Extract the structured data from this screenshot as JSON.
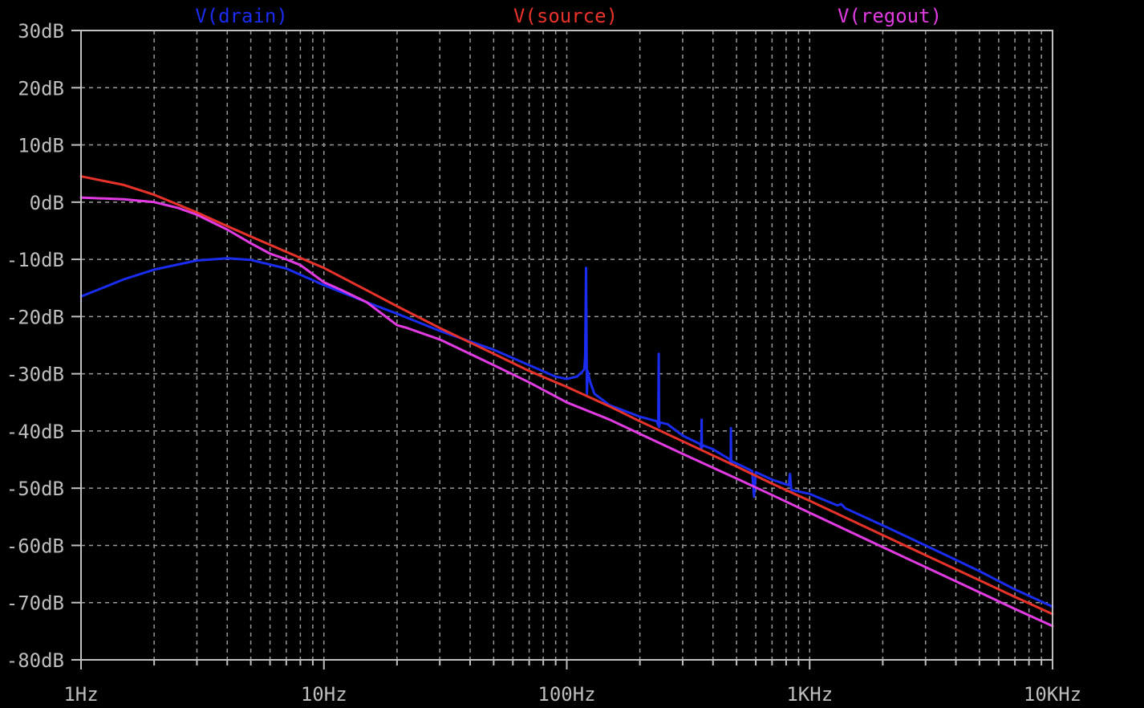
{
  "chart_data": {
    "type": "line",
    "title": "",
    "xlabel": "",
    "ylabel": "",
    "x_scale": "log",
    "x_range_hz": [
      1,
      10000
    ],
    "y_range_db": [
      -80,
      30
    ],
    "grid": true,
    "x_ticks": [
      {
        "value": 1,
        "label": "1Hz"
      },
      {
        "value": 10,
        "label": "10Hz"
      },
      {
        "value": 100,
        "label": "100Hz"
      },
      {
        "value": 1000,
        "label": "1KHz"
      },
      {
        "value": 10000,
        "label": "10KHz"
      }
    ],
    "y_ticks": [
      {
        "value": 30,
        "label": "30dB"
      },
      {
        "value": 20,
        "label": "20dB"
      },
      {
        "value": 10,
        "label": "10dB"
      },
      {
        "value": 0,
        "label": "0dB"
      },
      {
        "value": -10,
        "label": "-10dB"
      },
      {
        "value": -20,
        "label": "-20dB"
      },
      {
        "value": -30,
        "label": "-30dB"
      },
      {
        "value": -40,
        "label": "-40dB"
      },
      {
        "value": -50,
        "label": "-50dB"
      },
      {
        "value": -60,
        "label": "-60dB"
      },
      {
        "value": -70,
        "label": "-70dB"
      },
      {
        "value": -80,
        "label": "-80dB"
      }
    ],
    "colors": {
      "background": "#000000",
      "axis": "#c0c0c0",
      "grid": "#9a9a9a",
      "tick_label": "#bdbdbd"
    },
    "series": [
      {
        "name": "V(drain)",
        "color": "#1a2cf0",
        "points": [
          [
            1,
            -16.5
          ],
          [
            1.5,
            -13.5
          ],
          [
            2,
            -11.8
          ],
          [
            3,
            -10.2
          ],
          [
            4,
            -9.8
          ],
          [
            5,
            -10.1
          ],
          [
            7,
            -11.6
          ],
          [
            10,
            -14.5
          ],
          [
            15,
            -17.5
          ],
          [
            20,
            -19.5
          ],
          [
            30,
            -22.5
          ],
          [
            50,
            -25.8
          ],
          [
            70,
            -28.5
          ],
          [
            90,
            -30.5
          ],
          [
            100,
            -30.9
          ],
          [
            110,
            -30.5
          ],
          [
            115,
            -29.8
          ],
          [
            118,
            -29.2
          ],
          [
            119,
            -27
          ],
          [
            120,
            -11.5
          ],
          [
            121,
            -33.5
          ],
          [
            122,
            -29.5
          ],
          [
            125,
            -31.5
          ],
          [
            130,
            -33.5
          ],
          [
            150,
            -35.5
          ],
          [
            200,
            -37.5
          ],
          [
            235,
            -38.3
          ],
          [
            238,
            -39.0
          ],
          [
            239,
            -26.5
          ],
          [
            240,
            -39.3
          ],
          [
            242,
            -38.5
          ],
          [
            260,
            -38.8
          ],
          [
            300,
            -40.8
          ],
          [
            355,
            -42.3
          ],
          [
            358,
            -43.0
          ],
          [
            359,
            -38.0
          ],
          [
            360,
            -43.0
          ],
          [
            362,
            -42.5
          ],
          [
            400,
            -43.2
          ],
          [
            470,
            -45.0
          ],
          [
            473,
            -45.8
          ],
          [
            474,
            -39.5
          ],
          [
            475,
            -45.8
          ],
          [
            478,
            -45.3
          ],
          [
            550,
            -46.5
          ],
          [
            580,
            -47.0
          ],
          [
            590,
            -51.5
          ],
          [
            600,
            -47.2
          ],
          [
            700,
            -48.5
          ],
          [
            820,
            -49.5
          ],
          [
            830,
            -47.5
          ],
          [
            840,
            -50.3
          ],
          [
            1000,
            -51.0
          ],
          [
            1300,
            -53.0
          ],
          [
            1350,
            -52.8
          ],
          [
            1400,
            -53.5
          ],
          [
            2000,
            -56.5
          ],
          [
            3000,
            -60.0
          ],
          [
            5000,
            -64.5
          ],
          [
            7000,
            -67.7
          ],
          [
            10000,
            -70.7
          ]
        ]
      },
      {
        "name": "V(source)",
        "color": "#e8322a",
        "points": [
          [
            1,
            4.5
          ],
          [
            1.5,
            3.0
          ],
          [
            2,
            1.3
          ],
          [
            3,
            -1.8
          ],
          [
            4,
            -4.2
          ],
          [
            5,
            -6.0
          ],
          [
            7,
            -8.7
          ],
          [
            10,
            -11.5
          ],
          [
            15,
            -15.4
          ],
          [
            20,
            -18.2
          ],
          [
            30,
            -22.0
          ],
          [
            50,
            -26.5
          ],
          [
            70,
            -29.5
          ],
          [
            100,
            -32.3
          ],
          [
            150,
            -35.7
          ],
          [
            200,
            -38.3
          ],
          [
            300,
            -41.8
          ],
          [
            500,
            -46.2
          ],
          [
            700,
            -49.2
          ],
          [
            1000,
            -52.2
          ],
          [
            2000,
            -58.2
          ],
          [
            3000,
            -61.7
          ],
          [
            5000,
            -66.1
          ],
          [
            7000,
            -69.0
          ],
          [
            10000,
            -72.0
          ]
        ]
      },
      {
        "name": "V(regout)",
        "color": "#e33be3",
        "points": [
          [
            1,
            0.8
          ],
          [
            1.5,
            0.5
          ],
          [
            2,
            0
          ],
          [
            2.5,
            -1.0
          ],
          [
            3,
            -2.2
          ],
          [
            4,
            -4.8
          ],
          [
            5,
            -7.2
          ],
          [
            6,
            -9.0
          ],
          [
            7,
            -10.0
          ],
          [
            8,
            -11.0
          ],
          [
            10,
            -14.0
          ],
          [
            12,
            -15.5
          ],
          [
            15,
            -17.5
          ],
          [
            20,
            -21.5
          ],
          [
            22,
            -22.0
          ],
          [
            30,
            -24.0
          ],
          [
            50,
            -28.5
          ],
          [
            70,
            -31.5
          ],
          [
            100,
            -35.0
          ],
          [
            150,
            -38.0
          ],
          [
            200,
            -40.5
          ],
          [
            300,
            -44.0
          ],
          [
            500,
            -48.3
          ],
          [
            700,
            -51.2
          ],
          [
            1000,
            -54.3
          ],
          [
            2000,
            -60.3
          ],
          [
            3000,
            -63.8
          ],
          [
            5000,
            -68.2
          ],
          [
            7000,
            -71.1
          ],
          [
            10000,
            -74.1
          ]
        ]
      }
    ]
  }
}
